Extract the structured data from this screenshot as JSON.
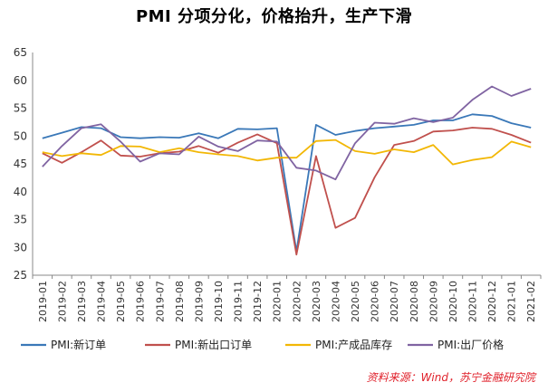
{
  "chart_data": {
    "type": "line",
    "title": "PMI 分项分化，价格抬升，生产下滑",
    "xlabel": "",
    "ylabel": "",
    "ylim": [
      25,
      65
    ],
    "yticks": [
      "25",
      "30",
      "35",
      "40",
      "45",
      "50",
      "55",
      "60",
      "65"
    ],
    "categories": [
      "2019-01",
      "2019-02",
      "2019-03",
      "2019-04",
      "2019-05",
      "2019-06",
      "2019-07",
      "2019-08",
      "2019-09",
      "2019-10",
      "2019-11",
      "2019-12",
      "2020-01",
      "2020-02",
      "2020-03",
      "2020-04",
      "2020-05",
      "2020-06",
      "2020-07",
      "2020-08",
      "2020-09",
      "2020-10",
      "2020-11",
      "2020-12",
      "2021-01",
      "2021-02"
    ],
    "grid": false,
    "legend_position": "bottom",
    "series": [
      {
        "name": "PMI:新订单",
        "color": "#3a78b8",
        "values": [
          49.6,
          50.6,
          51.6,
          51.4,
          49.8,
          49.6,
          49.8,
          49.7,
          50.5,
          49.6,
          51.3,
          51.2,
          51.4,
          29.3,
          52.0,
          50.2,
          50.9,
          51.4,
          51.7,
          52.0,
          52.8,
          52.8,
          53.9,
          53.6,
          52.3,
          51.5
        ]
      },
      {
        "name": "PMI:新出口订单",
        "color": "#c0504d",
        "values": [
          46.9,
          45.2,
          47.1,
          49.2,
          46.5,
          46.3,
          46.9,
          47.2,
          48.2,
          47.0,
          48.8,
          50.3,
          48.7,
          28.7,
          46.4,
          33.5,
          35.3,
          42.6,
          48.4,
          49.1,
          50.8,
          51.0,
          51.5,
          51.3,
          50.2,
          48.8
        ]
      },
      {
        "name": "PMI:产成品库存",
        "color": "#f2b705",
        "values": [
          47.1,
          46.4,
          46.9,
          46.6,
          48.2,
          48.1,
          47.1,
          47.8,
          47.1,
          46.7,
          46.4,
          45.6,
          46.1,
          46.1,
          49.1,
          49.3,
          47.3,
          46.8,
          47.6,
          47.1,
          48.4,
          44.9,
          45.7,
          46.2,
          49.0,
          48.0
        ]
      },
      {
        "name": "PMI:出厂价格",
        "color": "#8064a2",
        "values": [
          44.5,
          48.2,
          51.4,
          52.1,
          49.0,
          45.4,
          46.9,
          46.7,
          49.9,
          48.1,
          47.3,
          49.2,
          49.0,
          44.3,
          43.8,
          42.2,
          48.7,
          52.4,
          52.2,
          53.2,
          52.5,
          53.3,
          56.5,
          58.9,
          57.2,
          58.5
        ]
      }
    ]
  },
  "source_note": "资料来源：Wind，苏宁金融研究院"
}
